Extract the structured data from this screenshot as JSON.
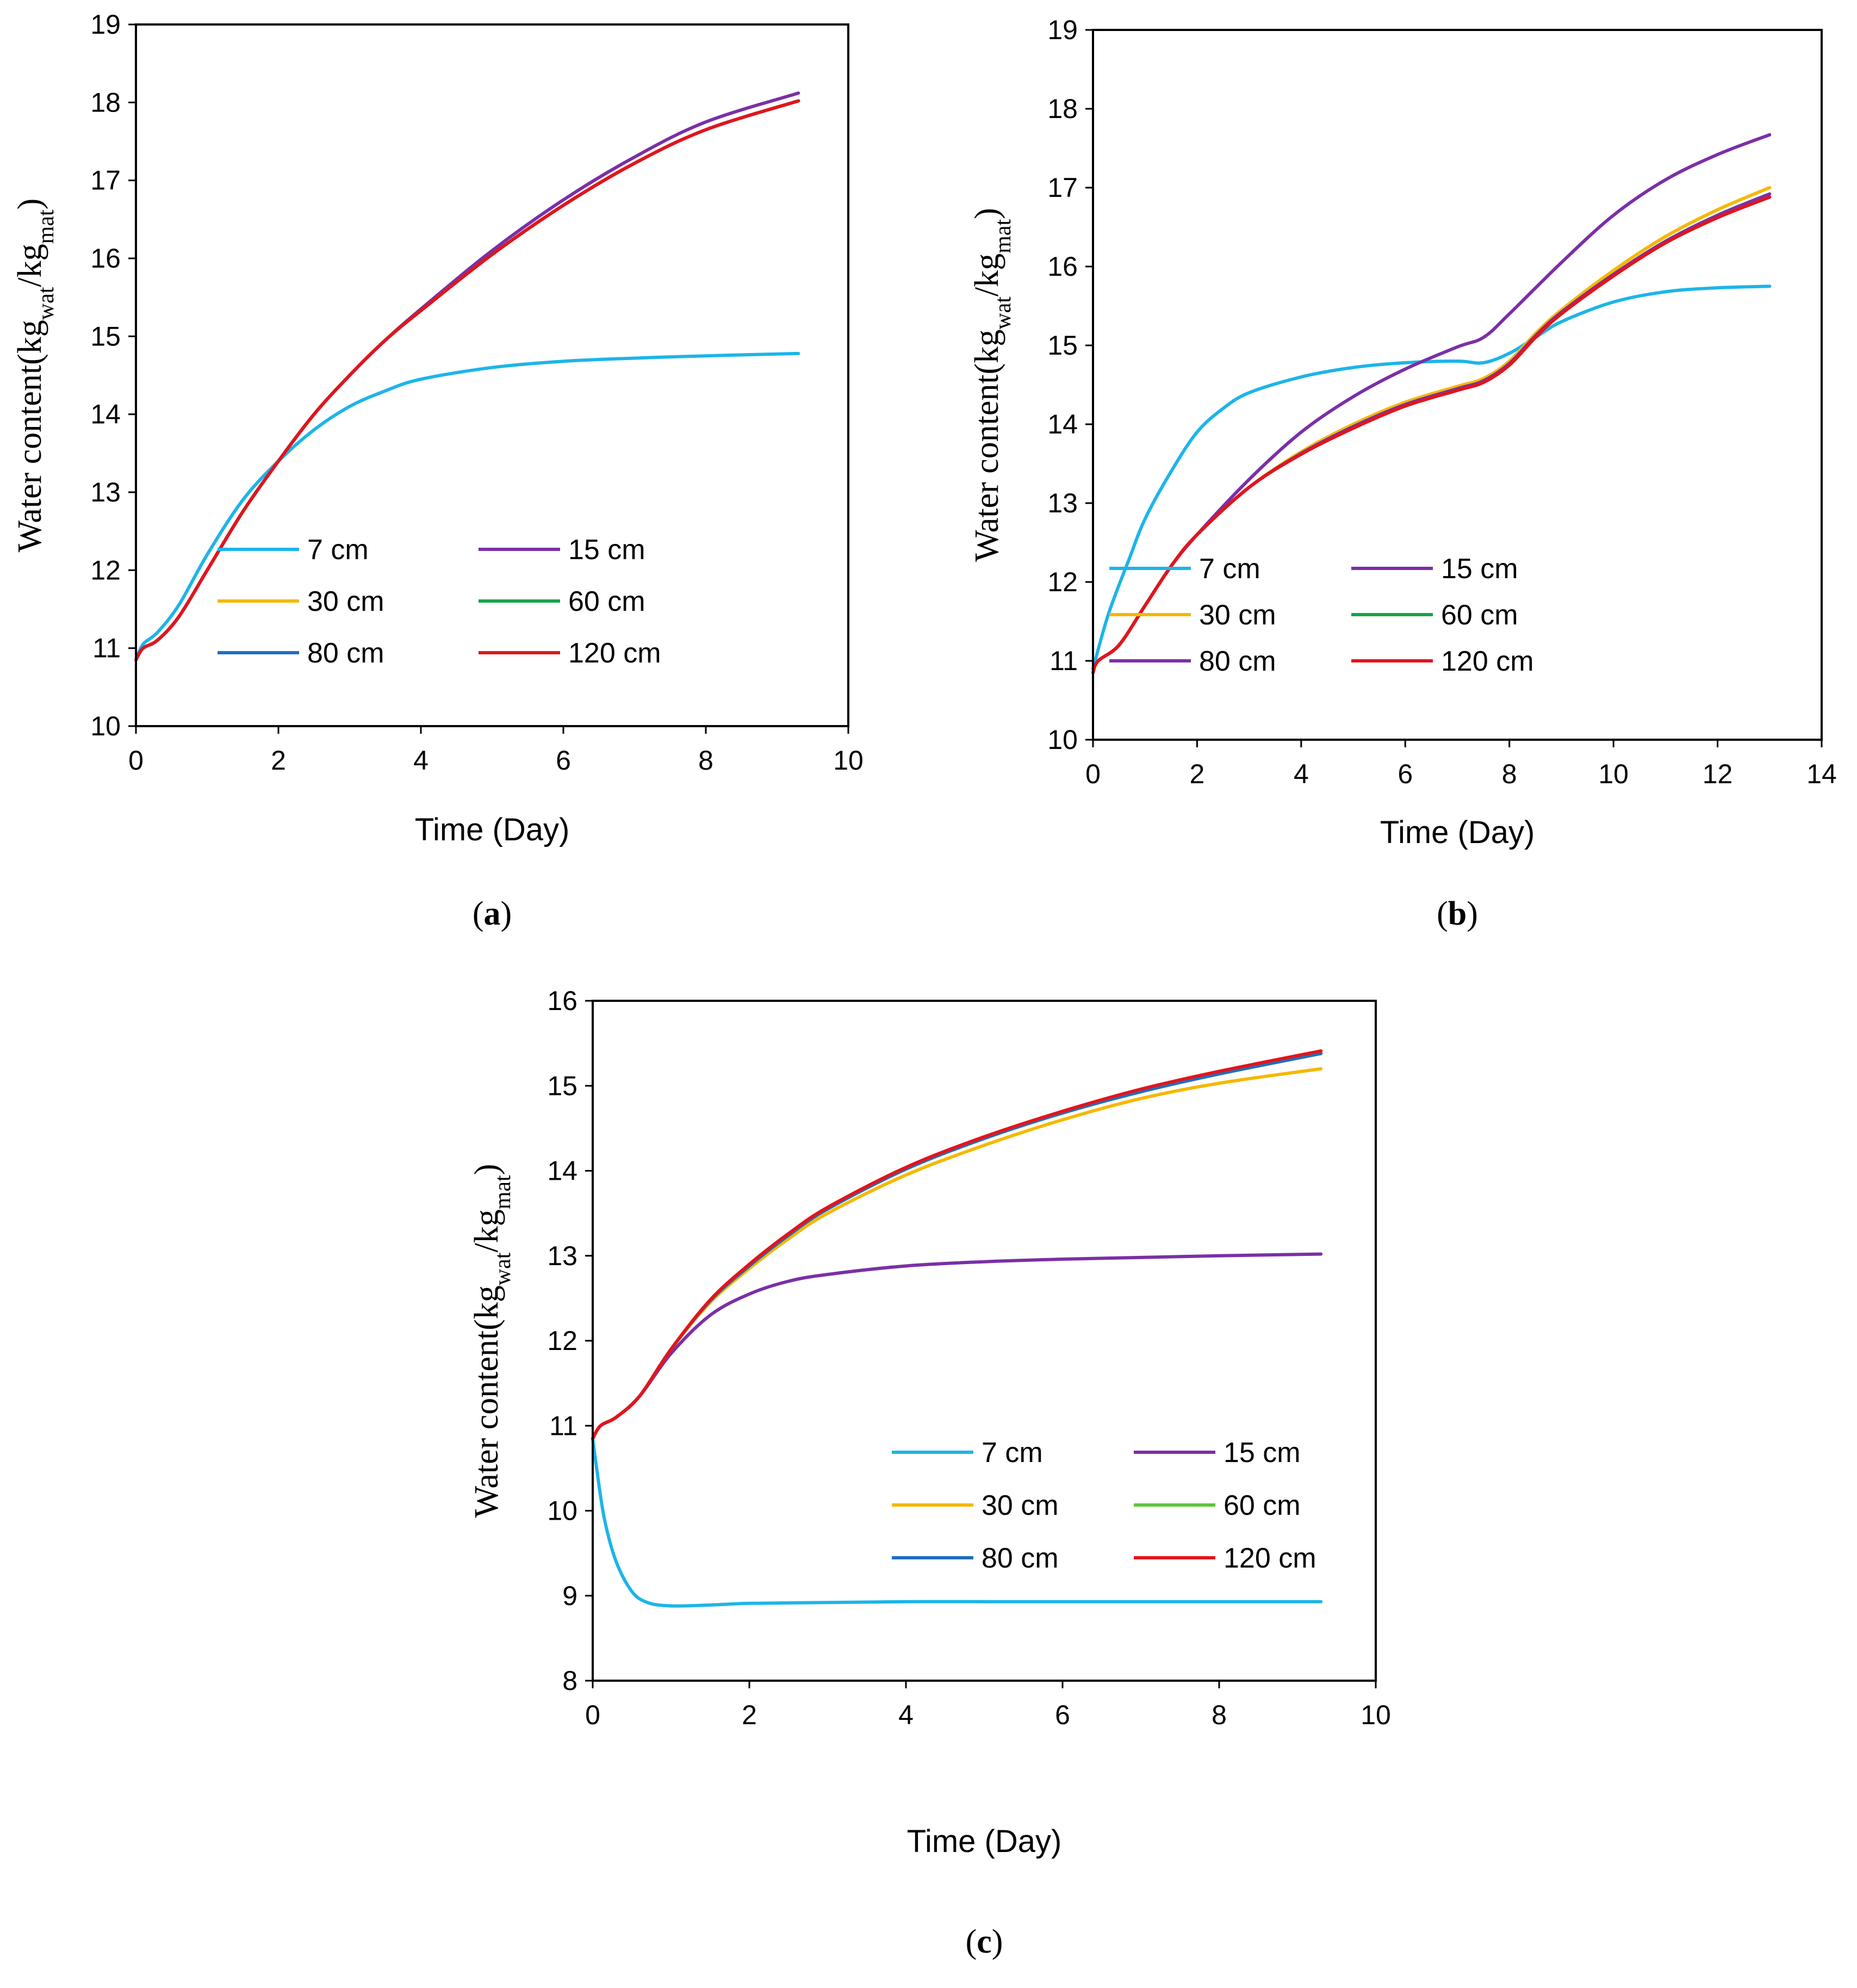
{
  "chart_data": [
    {
      "id": "a",
      "panel_label": "a",
      "type": "line",
      "xlabel": "Time (Day)",
      "ylabel": {
        "text": "Water content(kg",
        "sub1": "wat",
        "mid": "/kg",
        "sub2": "mat",
        "end": ")"
      },
      "xlim": [
        0,
        10
      ],
      "ylim": [
        10,
        19
      ],
      "xticks": [
        "0",
        "2",
        "4",
        "6",
        "8",
        "10"
      ],
      "yticks": [
        "10",
        "11",
        "12",
        "13",
        "14",
        "15",
        "16",
        "17",
        "18",
        "19"
      ],
      "legend": [
        {
          "name": "7 cm",
          "color": "#1cb5e8"
        },
        {
          "name": "15 cm",
          "color": "#7b2fa6"
        },
        {
          "name": "30 cm",
          "color": "#f5b800"
        },
        {
          "name": "60 cm",
          "color": "#17a34a"
        },
        {
          "name": "80 cm",
          "color": "#1f6fbf"
        },
        {
          "name": "120 cm",
          "color": "#e3141c"
        }
      ],
      "series": [
        {
          "name": "7 cm",
          "color": "#1cb5e8",
          "x": [
            0,
            0.1,
            0.3,
            0.6,
            1,
            1.5,
            2,
            2.5,
            3,
            3.5,
            4,
            5,
            6,
            7,
            8,
            9.3
          ],
          "y": [
            10.85,
            11.05,
            11.2,
            11.55,
            12.2,
            12.9,
            13.4,
            13.8,
            14.1,
            14.3,
            14.45,
            14.6,
            14.68,
            14.72,
            14.75,
            14.78
          ]
        },
        {
          "name": "15 cm",
          "color": "#7b2fa6",
          "x": [
            0,
            0.1,
            0.3,
            0.6,
            1,
            1.5,
            2,
            2.5,
            3,
            3.5,
            4,
            5,
            6,
            7,
            8,
            9.3
          ],
          "y": [
            10.85,
            11.0,
            11.1,
            11.4,
            12.0,
            12.75,
            13.4,
            14.0,
            14.5,
            14.95,
            15.35,
            16.1,
            16.75,
            17.3,
            17.75,
            18.12
          ]
        },
        {
          "name": "30 cm",
          "color": "#f5b800",
          "x": [
            0,
            0.1,
            0.3,
            0.6,
            1,
            1.5,
            2,
            2.5,
            3,
            3.5,
            4,
            5,
            6,
            7,
            8,
            9.3
          ],
          "y": [
            10.85,
            11.0,
            11.1,
            11.4,
            12.0,
            12.75,
            13.4,
            14.0,
            14.5,
            14.95,
            15.33,
            16.05,
            16.68,
            17.22,
            17.65,
            18.02
          ]
        },
        {
          "name": "60 cm",
          "color": "#17a34a",
          "x": [
            0,
            0.1,
            0.3,
            0.6,
            1,
            1.5,
            2,
            2.5,
            3,
            3.5,
            4,
            5,
            6,
            7,
            8,
            9.3
          ],
          "y": [
            10.85,
            11.0,
            11.1,
            11.4,
            12.0,
            12.75,
            13.4,
            14.0,
            14.5,
            14.95,
            15.33,
            16.05,
            16.68,
            17.22,
            17.65,
            18.02
          ]
        },
        {
          "name": "80 cm",
          "color": "#1f6fbf",
          "x": [
            0,
            0.1,
            0.3,
            0.6,
            1,
            1.5,
            2,
            2.5,
            3,
            3.5,
            4,
            5,
            6,
            7,
            8,
            9.3
          ],
          "y": [
            10.85,
            11.0,
            11.1,
            11.4,
            12.0,
            12.75,
            13.4,
            14.0,
            14.5,
            14.95,
            15.33,
            16.05,
            16.68,
            17.22,
            17.65,
            18.02
          ]
        },
        {
          "name": "120 cm",
          "color": "#e3141c",
          "x": [
            0,
            0.1,
            0.3,
            0.6,
            1,
            1.5,
            2,
            2.5,
            3,
            3.5,
            4,
            5,
            6,
            7,
            8,
            9.3
          ],
          "y": [
            10.85,
            11.0,
            11.1,
            11.4,
            12.0,
            12.75,
            13.4,
            14.0,
            14.5,
            14.95,
            15.33,
            16.05,
            16.68,
            17.22,
            17.65,
            18.02
          ]
        }
      ]
    },
    {
      "id": "b",
      "panel_label": "b",
      "type": "line",
      "xlabel": "Time (Day)",
      "ylabel": {
        "text": "Water content(kg",
        "sub1": "wat",
        "mid": "/kg",
        "sub2": "mat",
        "end": ")"
      },
      "xlim": [
        0,
        14
      ],
      "ylim": [
        10,
        19
      ],
      "xticks": [
        "0",
        "2",
        "4",
        "6",
        "8",
        "10",
        "12",
        "14"
      ],
      "yticks": [
        "10",
        "11",
        "12",
        "13",
        "14",
        "15",
        "16",
        "17",
        "18",
        "19"
      ],
      "legend": [
        {
          "name": "7 cm",
          "color": "#1cb5e8"
        },
        {
          "name": "15 cm",
          "color": "#7b2fa6"
        },
        {
          "name": "30 cm",
          "color": "#f5b800"
        },
        {
          "name": "60 cm",
          "color": "#17a34a"
        },
        {
          "name": "80 cm",
          "color": "#7b2fa6"
        },
        {
          "name": "120 cm",
          "color": "#e3141c"
        }
      ],
      "series": [
        {
          "name": "7 cm",
          "color": "#1cb5e8",
          "x": [
            0,
            0.3,
            0.7,
            1,
            1.5,
            2,
            2.5,
            3,
            4,
            5,
            6,
            7,
            7.5,
            8,
            8.5,
            9,
            10,
            11,
            12,
            13
          ],
          "y": [
            10.9,
            11.6,
            12.3,
            12.8,
            13.4,
            13.9,
            14.2,
            14.4,
            14.6,
            14.72,
            14.78,
            14.8,
            14.78,
            14.9,
            15.1,
            15.3,
            15.55,
            15.68,
            15.73,
            15.75
          ]
        },
        {
          "name": "15 cm",
          "color": "#7b2fa6",
          "x": [
            0,
            0.1,
            0.5,
            1,
            1.5,
            2,
            3,
            4,
            5,
            6,
            7,
            7.5,
            8,
            9,
            10,
            11,
            12,
            13
          ],
          "y": [
            10.85,
            11.0,
            11.2,
            11.7,
            12.2,
            12.6,
            13.3,
            13.9,
            14.35,
            14.7,
            14.98,
            15.1,
            15.4,
            16.05,
            16.65,
            17.1,
            17.42,
            17.67
          ]
        },
        {
          "name": "30 cm",
          "color": "#f5b800",
          "x": [
            0,
            0.1,
            0.5,
            1,
            1.5,
            2,
            3,
            4,
            5,
            6,
            7,
            7.5,
            8,
            8.5,
            9,
            10,
            11,
            12,
            13
          ],
          "y": [
            10.85,
            11.0,
            11.2,
            11.7,
            12.2,
            12.6,
            13.2,
            13.65,
            14.0,
            14.28,
            14.48,
            14.58,
            14.8,
            15.15,
            15.45,
            15.95,
            16.38,
            16.72,
            17.0
          ]
        },
        {
          "name": "60 cm",
          "color": "#17a34a",
          "x": [
            0,
            0.1,
            0.5,
            1,
            1.5,
            2,
            3,
            4,
            5,
            6,
            7,
            7.5,
            8,
            8.5,
            9,
            10,
            11,
            12,
            13
          ],
          "y": [
            10.85,
            11.0,
            11.2,
            11.7,
            12.2,
            12.6,
            13.2,
            13.63,
            13.97,
            14.25,
            14.45,
            14.55,
            14.77,
            15.12,
            15.42,
            15.9,
            16.32,
            16.65,
            16.92
          ]
        },
        {
          "name": "80 cm",
          "color": "#7b2fa6",
          "x": [
            0,
            0.1,
            0.5,
            1,
            1.5,
            2,
            3,
            4,
            5,
            6,
            7,
            7.5,
            8,
            8.5,
            9,
            10,
            11,
            12,
            13
          ],
          "y": [
            10.85,
            11.0,
            11.2,
            11.7,
            12.2,
            12.6,
            13.2,
            13.63,
            13.97,
            14.25,
            14.45,
            14.55,
            14.77,
            15.12,
            15.42,
            15.9,
            16.32,
            16.65,
            16.92
          ]
        },
        {
          "name": "120 cm",
          "color": "#e3141c",
          "x": [
            0,
            0.1,
            0.5,
            1,
            1.5,
            2,
            3,
            4,
            5,
            6,
            7,
            7.5,
            8,
            8.5,
            9,
            10,
            11,
            12,
            13
          ],
          "y": [
            10.85,
            11.0,
            11.2,
            11.7,
            12.2,
            12.6,
            13.2,
            13.62,
            13.95,
            14.23,
            14.43,
            14.53,
            14.75,
            15.1,
            15.4,
            15.88,
            16.3,
            16.62,
            16.88
          ]
        }
      ]
    },
    {
      "id": "c",
      "panel_label": "c",
      "type": "line",
      "xlabel": "Time (Day)",
      "ylabel": {
        "text": "Water content(kg",
        "sub1": "wat",
        "mid": "/kg",
        "sub2": "mat",
        "end": ")"
      },
      "xlim": [
        0,
        10
      ],
      "ylim": [
        8,
        16
      ],
      "xticks": [
        "0",
        "2",
        "4",
        "6",
        "8",
        "10"
      ],
      "yticks": [
        "8",
        "9",
        "10",
        "11",
        "12",
        "13",
        "14",
        "15",
        "16"
      ],
      "legend": [
        {
          "name": "7 cm",
          "color": "#1cb5e8"
        },
        {
          "name": "15 cm",
          "color": "#7b2fa6"
        },
        {
          "name": "30 cm",
          "color": "#f5b800"
        },
        {
          "name": "60 cm",
          "color": "#5fc43a"
        },
        {
          "name": "80 cm",
          "color": "#1f6fbf"
        },
        {
          "name": "120 cm",
          "color": "#e3141c"
        }
      ],
      "series": [
        {
          "name": "7 cm",
          "color": "#1cb5e8",
          "x": [
            0,
            0.05,
            0.15,
            0.3,
            0.5,
            0.7,
            1,
            1.5,
            2,
            3,
            4,
            5,
            6,
            7,
            8,
            9.3
          ],
          "y": [
            10.85,
            10.5,
            9.9,
            9.4,
            9.05,
            8.92,
            8.88,
            8.89,
            8.91,
            8.92,
            8.93,
            8.93,
            8.93,
            8.93,
            8.93,
            8.93
          ]
        },
        {
          "name": "15 cm",
          "color": "#7b2fa6",
          "x": [
            0,
            0.1,
            0.3,
            0.6,
            1,
            1.5,
            2,
            2.5,
            3,
            4,
            5,
            6,
            7,
            8,
            9.3
          ],
          "y": [
            10.85,
            11.0,
            11.1,
            11.35,
            11.85,
            12.3,
            12.55,
            12.7,
            12.78,
            12.88,
            12.93,
            12.96,
            12.98,
            13.0,
            13.02
          ]
        },
        {
          "name": "30 cm",
          "color": "#f5b800",
          "x": [
            0,
            0.1,
            0.3,
            0.6,
            1,
            1.5,
            2,
            2.5,
            3,
            4,
            5,
            6,
            7,
            8,
            9.3
          ],
          "y": [
            10.85,
            11.0,
            11.1,
            11.35,
            11.9,
            12.45,
            12.85,
            13.2,
            13.5,
            13.95,
            14.3,
            14.6,
            14.85,
            15.03,
            15.2
          ]
        },
        {
          "name": "60 cm",
          "color": "#5fc43a",
          "x": [
            0,
            0.1,
            0.3,
            0.6,
            1,
            1.5,
            2,
            2.5,
            3,
            4,
            5,
            6,
            7,
            8,
            9.3
          ],
          "y": [
            10.85,
            11.0,
            11.1,
            11.35,
            11.9,
            12.47,
            12.88,
            13.24,
            13.55,
            14.02,
            14.38,
            14.68,
            14.93,
            15.14,
            15.38
          ]
        },
        {
          "name": "80 cm",
          "color": "#1f6fbf",
          "x": [
            0,
            0.1,
            0.3,
            0.6,
            1,
            1.5,
            2,
            2.5,
            3,
            4,
            5,
            6,
            7,
            8,
            9.3
          ],
          "y": [
            10.85,
            11.0,
            11.1,
            11.35,
            11.9,
            12.47,
            12.88,
            13.24,
            13.55,
            14.02,
            14.38,
            14.68,
            14.93,
            15.14,
            15.38
          ]
        },
        {
          "name": "120 cm",
          "color": "#e3141c",
          "x": [
            0,
            0.1,
            0.3,
            0.6,
            1,
            1.5,
            2,
            2.5,
            3,
            4,
            5,
            6,
            7,
            8,
            9.3
          ],
          "y": [
            10.85,
            11.0,
            11.1,
            11.35,
            11.9,
            12.48,
            12.9,
            13.26,
            13.57,
            14.04,
            14.4,
            14.7,
            14.96,
            15.17,
            15.41
          ]
        }
      ]
    }
  ]
}
